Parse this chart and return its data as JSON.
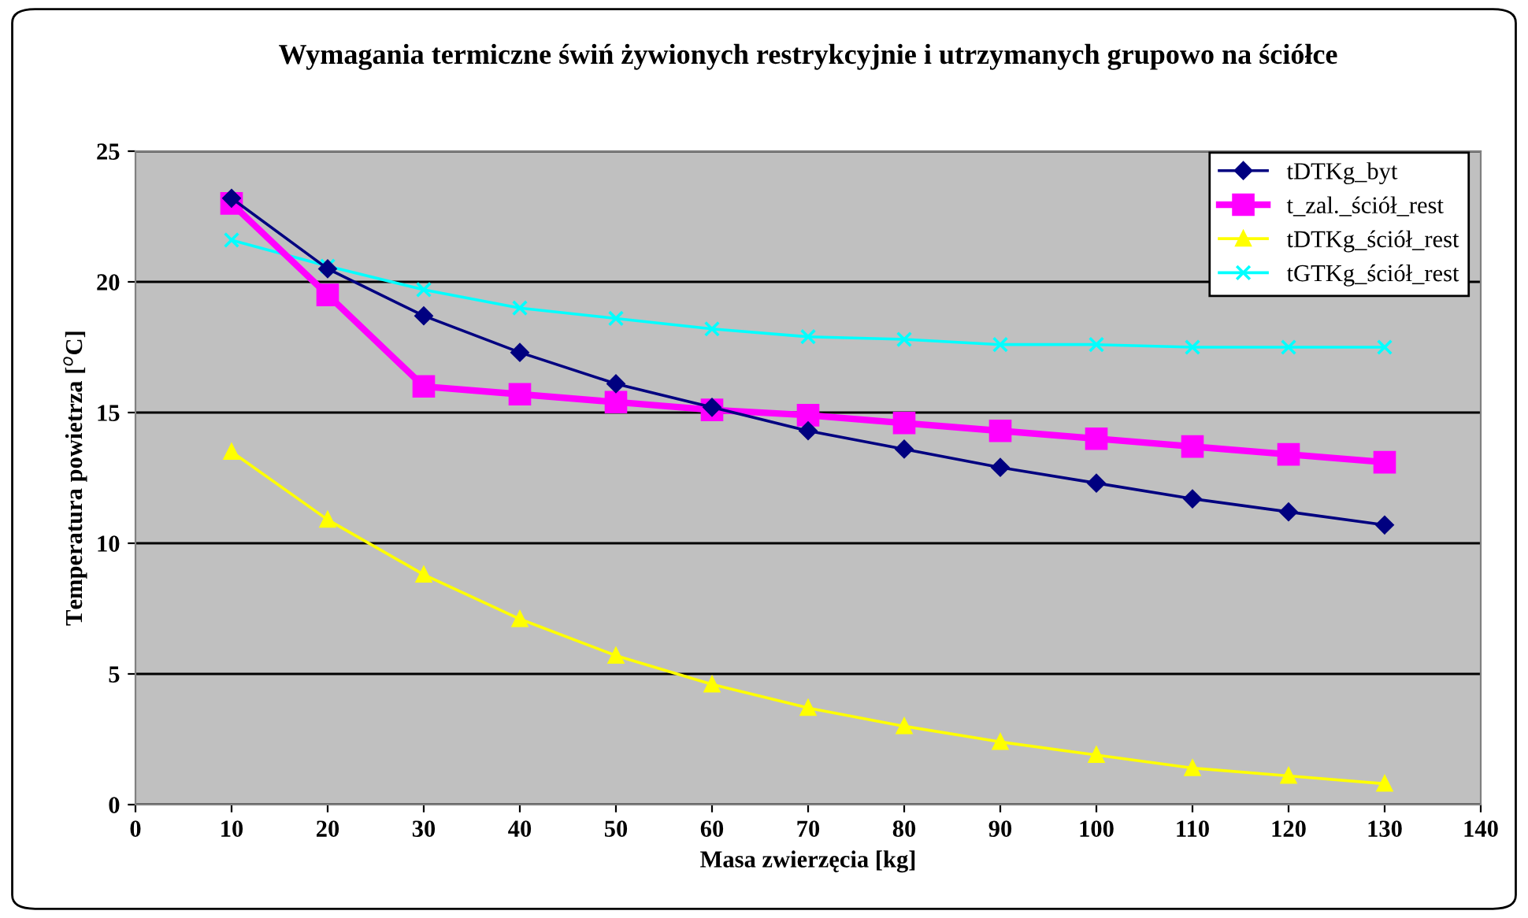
{
  "chart_data": {
    "type": "line",
    "title": "Wymagania termiczne świń żywionych restrykcyjnie i utrzymanych grupowo na ściółce",
    "xlabel": "Masa zwierzęcia [kg]",
    "ylabel": "Temperatura powietrza [$^{o}$C]",
    "x": [
      10,
      20,
      30,
      40,
      50,
      60,
      70,
      80,
      90,
      100,
      110,
      120,
      130
    ],
    "series": [
      {
        "name": "tDTKg_byt",
        "color": "#000080",
        "marker": "diamond",
        "values": [
          23.2,
          20.5,
          18.7,
          17.3,
          16.1,
          15.2,
          14.3,
          13.6,
          12.9,
          12.3,
          11.7,
          11.2,
          10.7
        ]
      },
      {
        "name": "t_zal._ściół_rest",
        "color": "#ff00ff",
        "marker": "square",
        "values": [
          23.0,
          19.5,
          16.0,
          15.7,
          15.4,
          15.1,
          14.9,
          14.6,
          14.3,
          14.0,
          13.7,
          13.4,
          13.1
        ]
      },
      {
        "name": "tDTKg_ściół_rest",
        "color": "#ffff00",
        "marker": "triangle",
        "values": [
          13.5,
          10.9,
          8.8,
          7.1,
          5.7,
          4.6,
          3.7,
          3.0,
          2.4,
          1.9,
          1.4,
          1.1,
          0.8
        ]
      },
      {
        "name": "tGTKg_ściół_rest",
        "color": "#00ffff",
        "marker": "cross",
        "values": [
          21.6,
          20.6,
          19.7,
          19.0,
          18.6,
          18.2,
          17.9,
          17.8,
          17.6,
          17.6,
          17.5,
          17.5,
          17.5
        ]
      }
    ],
    "xlim": [
      0,
      140
    ],
    "xticks": [
      0,
      10,
      20,
      30,
      40,
      50,
      60,
      70,
      80,
      90,
      100,
      110,
      120,
      130,
      140
    ],
    "ylim": [
      0,
      25
    ],
    "yticks": [
      0,
      5,
      10,
      15,
      20,
      25
    ],
    "grid": "y",
    "legend": "top right"
  }
}
